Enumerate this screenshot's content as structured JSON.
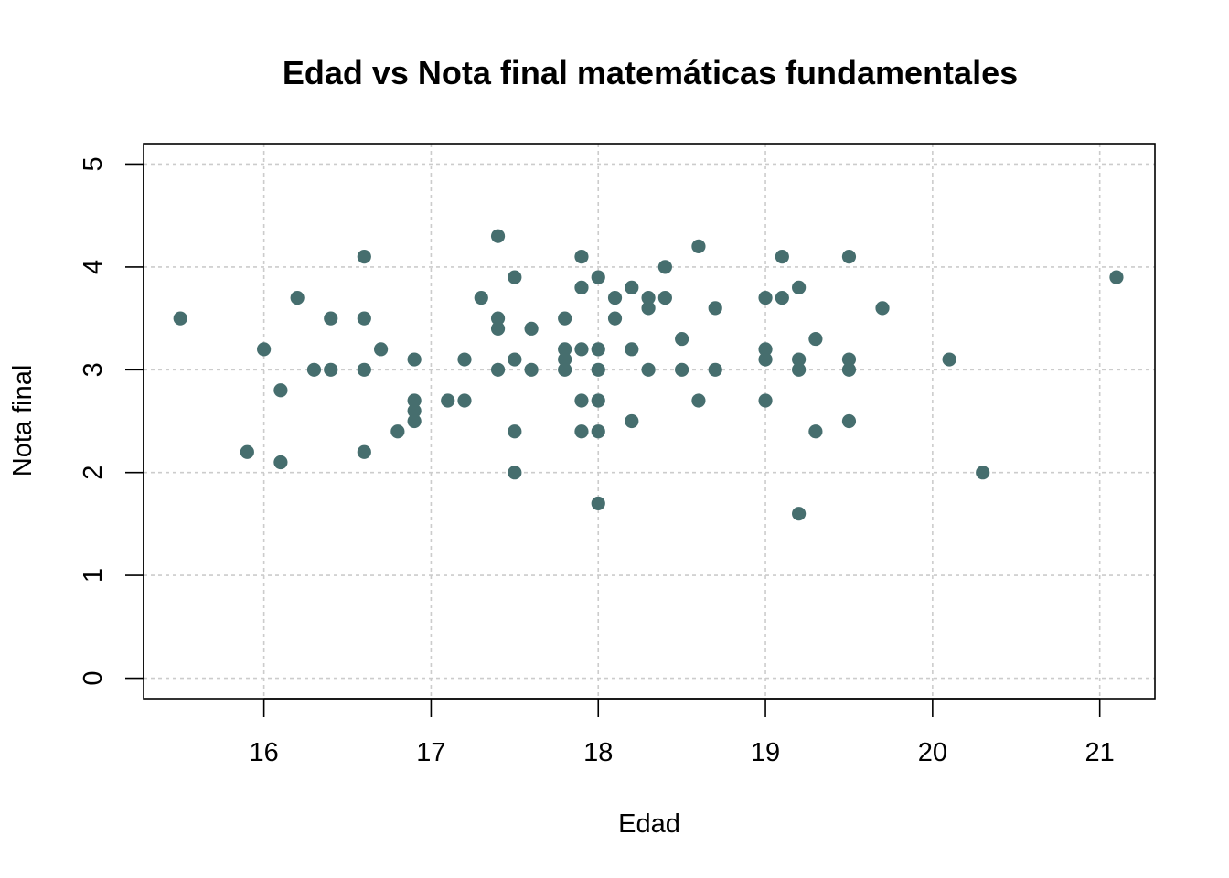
{
  "chart_data": {
    "type": "scatter",
    "title": "Edad vs Nota final matemáticas fundamentales",
    "xlabel": "Edad",
    "ylabel": "Nota final",
    "xlim": [
      15.28,
      21.33
    ],
    "ylim": [
      -0.2,
      5.2
    ],
    "x_ticks": [
      16,
      17,
      18,
      19,
      20,
      21
    ],
    "y_ticks": [
      0,
      1,
      2,
      3,
      4,
      5
    ],
    "grid": true,
    "point_color": "#466e6e",
    "points": [
      [
        15.5,
        3.5
      ],
      [
        15.9,
        2.2
      ],
      [
        16.0,
        3.2
      ],
      [
        16.1,
        2.8
      ],
      [
        16.1,
        2.1
      ],
      [
        16.2,
        3.7
      ],
      [
        16.3,
        3.0
      ],
      [
        16.4,
        3.5
      ],
      [
        16.4,
        3.0
      ],
      [
        16.6,
        4.1
      ],
      [
        16.6,
        3.5
      ],
      [
        16.6,
        3.0
      ],
      [
        16.6,
        2.2
      ],
      [
        16.7,
        3.2
      ],
      [
        16.8,
        2.4
      ],
      [
        16.9,
        3.1
      ],
      [
        16.9,
        2.7
      ],
      [
        16.9,
        2.6
      ],
      [
        16.9,
        2.5
      ],
      [
        17.1,
        2.7
      ],
      [
        17.2,
        3.1
      ],
      [
        17.2,
        2.7
      ],
      [
        17.3,
        3.7
      ],
      [
        17.4,
        4.3
      ],
      [
        17.4,
        3.5
      ],
      [
        17.4,
        3.4
      ],
      [
        17.4,
        3.0
      ],
      [
        17.5,
        3.9
      ],
      [
        17.5,
        3.1
      ],
      [
        17.5,
        2.4
      ],
      [
        17.5,
        2.0
      ],
      [
        17.6,
        3.4
      ],
      [
        17.6,
        3.0
      ],
      [
        17.8,
        3.5
      ],
      [
        17.8,
        3.2
      ],
      [
        17.8,
        3.1
      ],
      [
        17.8,
        3.0
      ],
      [
        17.9,
        4.1
      ],
      [
        17.9,
        3.8
      ],
      [
        17.9,
        3.2
      ],
      [
        17.9,
        2.7
      ],
      [
        17.9,
        2.4
      ],
      [
        18.0,
        3.9
      ],
      [
        18.0,
        3.2
      ],
      [
        18.0,
        3.0
      ],
      [
        18.0,
        2.7
      ],
      [
        18.0,
        2.4
      ],
      [
        18.0,
        1.7
      ],
      [
        18.1,
        3.7
      ],
      [
        18.1,
        3.5
      ],
      [
        18.2,
        3.8
      ],
      [
        18.2,
        3.2
      ],
      [
        18.2,
        2.5
      ],
      [
        18.3,
        3.7
      ],
      [
        18.3,
        3.6
      ],
      [
        18.3,
        3.0
      ],
      [
        18.4,
        4.0
      ],
      [
        18.4,
        3.7
      ],
      [
        18.5,
        3.3
      ],
      [
        18.5,
        3.0
      ],
      [
        18.6,
        4.2
      ],
      [
        18.6,
        2.7
      ],
      [
        18.7,
        3.6
      ],
      [
        18.7,
        3.0
      ],
      [
        19.0,
        3.7
      ],
      [
        19.0,
        3.2
      ],
      [
        19.0,
        3.1
      ],
      [
        19.0,
        2.7
      ],
      [
        19.1,
        4.1
      ],
      [
        19.1,
        3.7
      ],
      [
        19.2,
        3.8
      ],
      [
        19.2,
        3.1
      ],
      [
        19.2,
        3.0
      ],
      [
        19.2,
        1.6
      ],
      [
        19.3,
        3.3
      ],
      [
        19.3,
        2.4
      ],
      [
        19.5,
        4.1
      ],
      [
        19.5,
        3.1
      ],
      [
        19.5,
        3.0
      ],
      [
        19.5,
        2.5
      ],
      [
        19.7,
        3.6
      ],
      [
        20.1,
        3.1
      ],
      [
        20.3,
        2.0
      ],
      [
        21.1,
        3.9
      ]
    ]
  }
}
